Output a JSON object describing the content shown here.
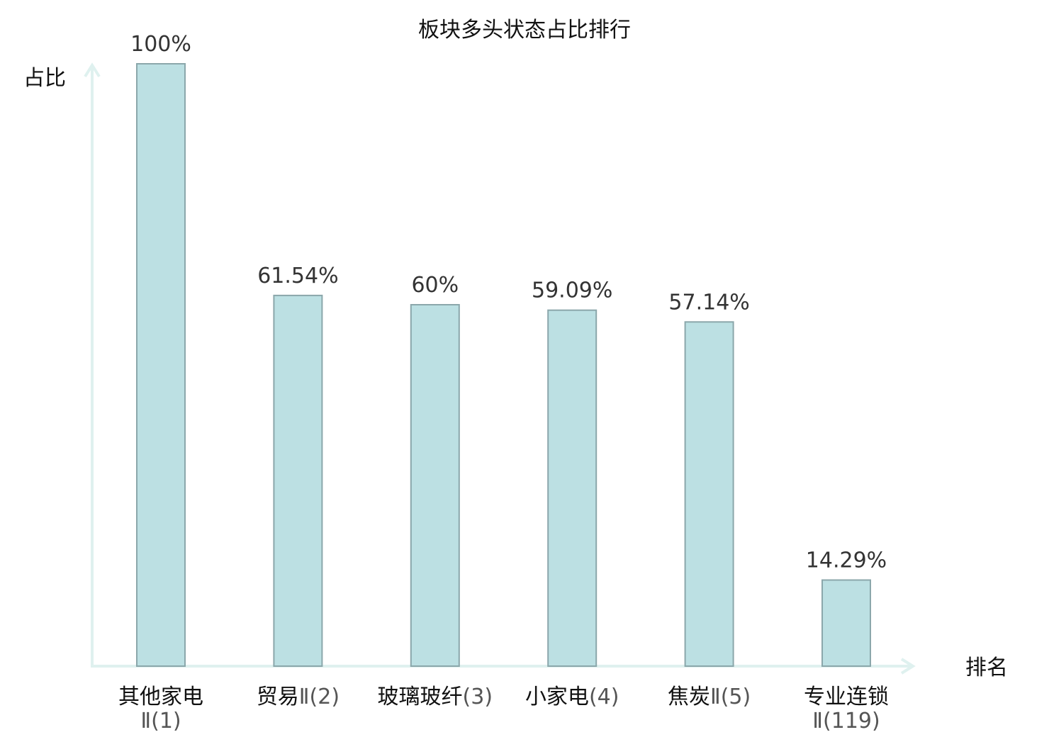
{
  "chart_data": {
    "type": "bar",
    "title": "板块多头状态占比排行",
    "xlabel": "排名",
    "ylabel": "占比",
    "ylim": [
      0,
      100
    ],
    "grid": false,
    "categories": [
      {
        "name": "其他家电",
        "rank": "Ⅱ(1)",
        "split": true,
        "highlight": false
      },
      {
        "name": "贸易",
        "rank": "Ⅱ(2)",
        "split": false,
        "highlight": false
      },
      {
        "name": "玻璃玻纤",
        "rank": "(3)",
        "split": false,
        "highlight": false
      },
      {
        "name": "小家电",
        "rank": "(4)",
        "split": false,
        "highlight": false
      },
      {
        "name": "焦炭",
        "rank": "Ⅱ(5)",
        "split": false,
        "highlight": false
      },
      {
        "name": "专业连锁",
        "rank": "Ⅱ(119)",
        "split": true,
        "highlight": true
      }
    ],
    "values": [
      100,
      61.54,
      60,
      59.09,
      57.14,
      14.29
    ],
    "value_labels": [
      "100%",
      "61.54%",
      "60%",
      "59.09%",
      "57.14%",
      "14.29%"
    ]
  },
  "colors": {
    "bar_fill": "#bce0e3",
    "bar_stroke": "#8ba7ab",
    "axis": "#dff1ef",
    "highlight": "#e8201c",
    "text": "#111111",
    "value_text": "#333333"
  }
}
